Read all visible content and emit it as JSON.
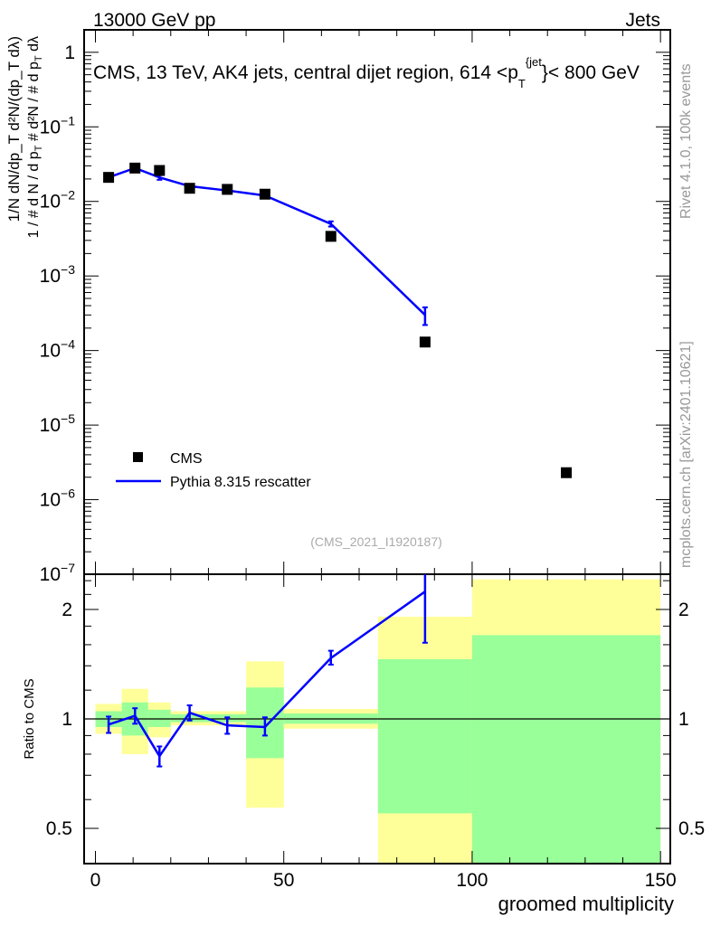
{
  "header": {
    "left": "13000 GeV pp",
    "right": "Jets"
  },
  "side_labels": {
    "rivet": "Rivet 4.1.0,  100k events",
    "mcplots": "mcplots.cern.ch [arXiv:2401.10621]"
  },
  "chart_data": [
    {
      "type": "scatter",
      "title": "CMS, 13 TeV, AK4 jets, central dijet region, 614 <p_T^{jet}< 800 GeV",
      "title_parts": {
        "pre": "CMS, 13 TeV, AK4 jets, central dijet region, 614 <p",
        "sub": "T",
        "sup": "{jet",
        "post": "}< 800 GeV"
      },
      "ylabel": "1/N dN/dp_T  d²N/(dp_T dλ)",
      "ylabel_parts": {
        "num1": "1",
        "den1": "# d N / d p",
        "sub": "T",
        "num2": "#   d²N",
        "den2": "# d p",
        "den2b": "  dλ"
      },
      "yscale": "log",
      "ylim": [
        1e-07,
        2
      ],
      "xlim": [
        -3,
        152.6
      ],
      "yticks": [
        {
          "v": 1,
          "l": "1"
        },
        {
          "v": 0.1,
          "l": "10",
          "e": "−1"
        },
        {
          "v": 0.01,
          "l": "10",
          "e": "−2"
        },
        {
          "v": 0.001,
          "l": "10",
          "e": "−3"
        },
        {
          "v": 0.0001,
          "l": "10",
          "e": "−4"
        },
        {
          "v": 1e-05,
          "l": "10",
          "e": "−5"
        },
        {
          "v": 1e-06,
          "l": "10",
          "e": "−6"
        },
        {
          "v": 1e-07,
          "l": "10",
          "e": "−7"
        }
      ],
      "watermark": "(CMS_2021_I1920187)",
      "legend": {
        "placement": "bottom-left",
        "entries": [
          "CMS",
          "Pythia 8.315 rescatter"
        ]
      },
      "series": [
        {
          "name": "CMS",
          "marker": "square",
          "color": "#000000",
          "x": [
            3.5,
            10.5,
            17,
            25,
            35,
            45,
            62.5,
            87.5,
            125
          ],
          "y": [
            0.021,
            0.028,
            0.026,
            0.015,
            0.0145,
            0.0125,
            0.0034,
            0.00013,
            2.3e-06
          ]
        },
        {
          "name": "Pythia 8.315 rescatter",
          "marker": "line",
          "color": "#0000ff",
          "x": [
            3.5,
            10.5,
            17,
            25,
            35,
            45,
            62.5,
            87.5
          ],
          "y": [
            0.021,
            0.028,
            0.021,
            0.016,
            0.014,
            0.012,
            0.005,
            0.0003
          ],
          "yerr_lo": [
            0.0015,
            0.0015,
            0.0015,
            0.001,
            0.0008,
            0.0008,
            0.0004,
            8e-05
          ],
          "yerr_hi": [
            0.0015,
            0.0015,
            0.0015,
            0.001,
            0.0008,
            0.0008,
            0.0004,
            8e-05
          ]
        }
      ]
    },
    {
      "type": "line",
      "ylabel": "Ratio to CMS",
      "xlabel": "groomed multiplicity",
      "yscale": "log",
      "ylim": [
        0.4,
        2.5
      ],
      "xlim": [
        -3,
        152.6
      ],
      "xticks": [
        0,
        50,
        100,
        150
      ],
      "yticks": [
        {
          "v": 0.5,
          "l": "0.5"
        },
        {
          "v": 1,
          "l": "1"
        },
        {
          "v": 2,
          "l": "2"
        }
      ],
      "bins": {
        "edges": [
          0,
          7,
          14,
          20,
          30,
          40,
          50,
          75,
          100,
          150
        ],
        "yellow_lo": [
          0.91,
          0.8,
          0.89,
          0.96,
          0.96,
          0.57,
          0.94,
          0.4,
          0.4
        ],
        "yellow_hi": [
          1.1,
          1.21,
          1.11,
          1.05,
          1.05,
          1.44,
          1.065,
          1.91,
          2.42
        ],
        "green_lo": [
          0.95,
          0.9,
          0.95,
          0.98,
          0.98,
          0.78,
          0.97,
          0.55,
          0.4
        ],
        "green_hi": [
          1.05,
          1.11,
          1.06,
          1.03,
          1.03,
          1.22,
          1.035,
          1.46,
          1.7
        ]
      },
      "series": [
        {
          "name": "Pythia 8.315 rescatter",
          "color": "#0000ff",
          "x": [
            3.5,
            10.5,
            17,
            25,
            35,
            45,
            62.5,
            87.5
          ],
          "y": [
            0.965,
            1.02,
            0.79,
            1.04,
            0.96,
            0.95,
            1.47,
            2.24
          ],
          "yerr_lo": [
            0.05,
            0.05,
            0.05,
            0.05,
            0.05,
            0.05,
            0.06,
            0.62
          ],
          "yerr_hi": [
            0.05,
            0.05,
            0.05,
            0.05,
            0.05,
            0.06,
            0.07,
            0.6
          ]
        }
      ],
      "colors": {
        "yellow": "#ffff99",
        "green": "#99ff99"
      }
    }
  ]
}
